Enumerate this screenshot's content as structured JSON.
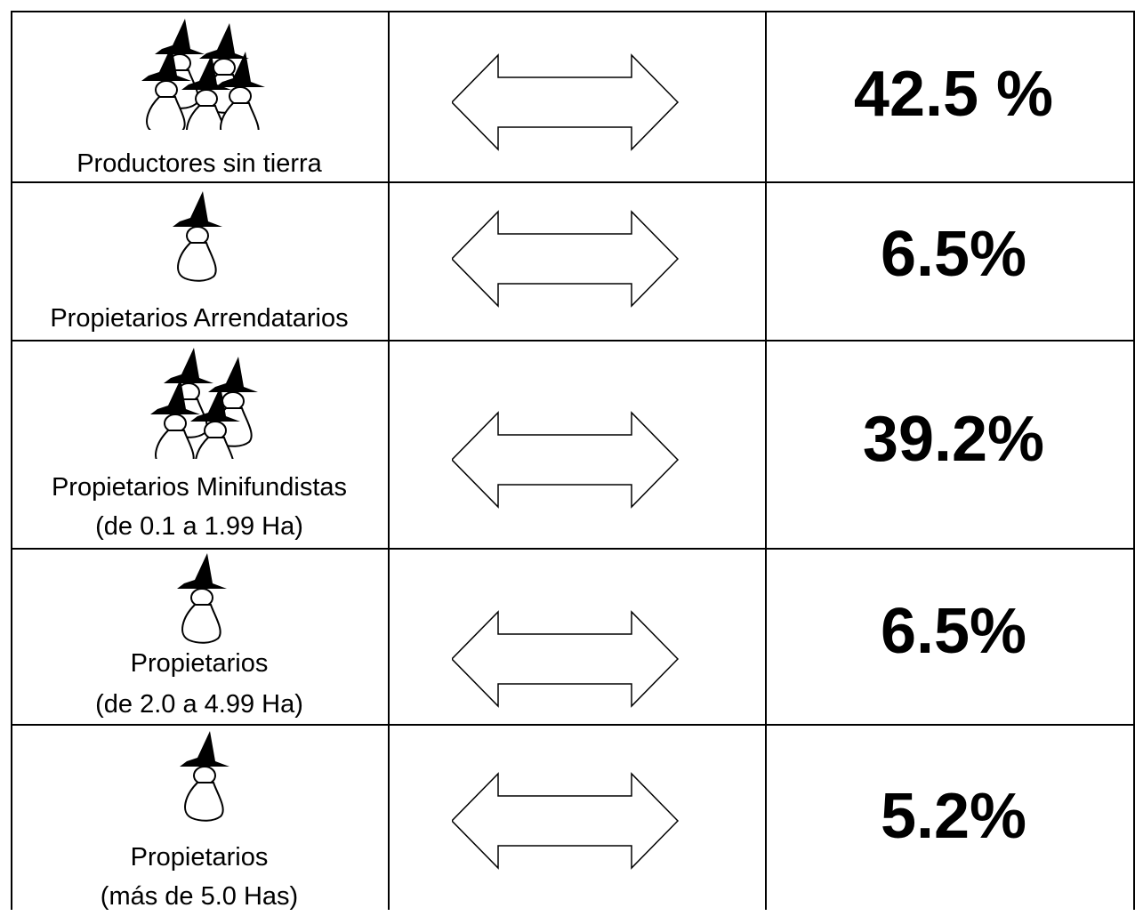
{
  "rows": [
    {
      "label_line1": "Productores sin tierra",
      "label_line2": "",
      "percent": "42.5 %",
      "figure_count": 5,
      "figure_icon": "farmer-group-icon"
    },
    {
      "label_line1": "Propietarios Arrendatarios",
      "label_line2": "",
      "percent": "6.5%",
      "figure_count": 1,
      "figure_icon": "farmer-icon"
    },
    {
      "label_line1": "Propietarios Minifundistas",
      "label_line2": "(de 0.1 a 1.99 Ha)",
      "percent": "39.2%",
      "figure_count": 4,
      "figure_icon": "farmer-group-icon"
    },
    {
      "label_line1": "Propietarios",
      "label_line2": "(de 2.0 a 4.99 Ha)",
      "percent": "6.5%",
      "figure_count": 1,
      "figure_icon": "farmer-icon"
    },
    {
      "label_line1": "Propietarios",
      "label_line2": "(más de 5.0 Has)",
      "percent": "5.2%",
      "figure_count": 1,
      "figure_icon": "farmer-icon"
    }
  ],
  "arrow_icon": "double-arrow-icon",
  "colors": {
    "line": "#000000",
    "background": "#ffffff"
  }
}
